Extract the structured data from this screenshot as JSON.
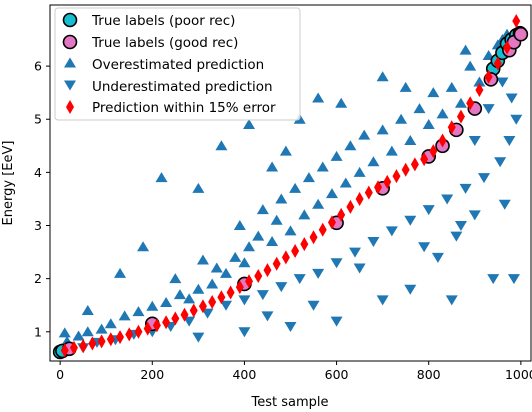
{
  "chart_data": {
    "type": "scatter",
    "xlabel": "Test sample",
    "ylabel": "Energy [EeV]",
    "xlim": [
      -22,
      1022
    ],
    "ylim": [
      0.45,
      7.15
    ],
    "x_ticks": [
      0,
      200,
      400,
      600,
      800,
      1000
    ],
    "y_ticks": [
      1,
      2,
      3,
      4,
      5,
      6
    ],
    "grid": false,
    "legend_position": "upper-left",
    "series": [
      {
        "name": "True labels (poor rec)",
        "marker": "circle",
        "color": "#17becf",
        "points": [
          [
            0,
            0.62
          ],
          [
            5,
            0.64
          ],
          [
            940,
            5.95
          ],
          [
            950,
            6.1
          ],
          [
            960,
            6.25
          ],
          [
            970,
            6.42
          ],
          [
            980,
            6.5
          ],
          [
            990,
            6.58
          ],
          [
            998,
            6.62
          ]
        ]
      },
      {
        "name": "True labels (good rec)",
        "marker": "circle",
        "color": "#e377c2",
        "points": [
          [
            20,
            0.68
          ],
          [
            200,
            1.15
          ],
          [
            400,
            1.9
          ],
          [
            600,
            3.05
          ],
          [
            700,
            3.7
          ],
          [
            800,
            4.3
          ],
          [
            830,
            4.5
          ],
          [
            860,
            4.8
          ],
          [
            900,
            5.2
          ],
          [
            935,
            5.75
          ],
          [
            975,
            6.3
          ],
          [
            985,
            6.45
          ],
          [
            1000,
            6.6
          ]
        ]
      },
      {
        "name": "Overestimated prediction",
        "marker": "triangle-up",
        "color": "#1f77b4",
        "points": [
          [
            10,
            0.98
          ],
          [
            15,
            0.82
          ],
          [
            40,
            0.92
          ],
          [
            60,
            1.0
          ],
          [
            90,
            1.05
          ],
          [
            110,
            1.15
          ],
          [
            140,
            1.3
          ],
          [
            170,
            1.38
          ],
          [
            200,
            1.48
          ],
          [
            230,
            1.55
          ],
          [
            250,
            2.0
          ],
          [
            260,
            1.7
          ],
          [
            280,
            1.62
          ],
          [
            300,
            1.8
          ],
          [
            310,
            2.35
          ],
          [
            330,
            1.9
          ],
          [
            340,
            2.2
          ],
          [
            360,
            2.1
          ],
          [
            380,
            2.4
          ],
          [
            390,
            3.0
          ],
          [
            400,
            2.3
          ],
          [
            410,
            2.6
          ],
          [
            430,
            2.8
          ],
          [
            440,
            3.3
          ],
          [
            460,
            2.7
          ],
          [
            470,
            3.1
          ],
          [
            480,
            3.5
          ],
          [
            500,
            2.9
          ],
          [
            510,
            3.7
          ],
          [
            530,
            3.2
          ],
          [
            540,
            3.9
          ],
          [
            560,
            3.4
          ],
          [
            570,
            4.1
          ],
          [
            590,
            3.6
          ],
          [
            600,
            4.3
          ],
          [
            620,
            3.8
          ],
          [
            630,
            4.5
          ],
          [
            650,
            4.0
          ],
          [
            660,
            4.7
          ],
          [
            680,
            4.2
          ],
          [
            700,
            4.8
          ],
          [
            720,
            4.4
          ],
          [
            740,
            5.0
          ],
          [
            760,
            4.6
          ],
          [
            780,
            5.2
          ],
          [
            800,
            4.9
          ],
          [
            810,
            5.5
          ],
          [
            830,
            5.1
          ],
          [
            850,
            5.6
          ],
          [
            870,
            5.3
          ],
          [
            890,
            6.0
          ],
          [
            910,
            5.7
          ],
          [
            930,
            6.2
          ],
          [
            950,
            6.4
          ],
          [
            960,
            6.5
          ],
          [
            970,
            6.6
          ],
          [
            350,
            4.5
          ],
          [
            410,
            4.9
          ],
          [
            490,
            4.4
          ],
          [
            560,
            5.4
          ],
          [
            610,
            5.3
          ],
          [
            300,
            3.7
          ],
          [
            220,
            3.9
          ],
          [
            180,
            2.6
          ],
          [
            130,
            2.1
          ],
          [
            60,
            1.4
          ],
          [
            880,
            6.3
          ],
          [
            460,
            4.1
          ],
          [
            700,
            5.8
          ],
          [
            750,
            5.6
          ],
          [
            520,
            5.0
          ]
        ]
      },
      {
        "name": "Underestimated prediction",
        "marker": "triangle-down",
        "color": "#1f77b4",
        "points": [
          [
            50,
            0.7
          ],
          [
            80,
            0.8
          ],
          [
            120,
            0.85
          ],
          [
            160,
            0.95
          ],
          [
            200,
            1.0
          ],
          [
            240,
            1.1
          ],
          [
            280,
            1.2
          ],
          [
            320,
            1.35
          ],
          [
            360,
            1.5
          ],
          [
            400,
            1.6
          ],
          [
            440,
            1.7
          ],
          [
            480,
            1.85
          ],
          [
            520,
            2.0
          ],
          [
            560,
            2.1
          ],
          [
            600,
            2.3
          ],
          [
            640,
            2.5
          ],
          [
            680,
            2.7
          ],
          [
            720,
            2.9
          ],
          [
            760,
            3.1
          ],
          [
            800,
            3.3
          ],
          [
            820,
            2.4
          ],
          [
            840,
            3.5
          ],
          [
            860,
            2.8
          ],
          [
            880,
            3.7
          ],
          [
            900,
            3.2
          ],
          [
            920,
            3.9
          ],
          [
            940,
            2.0
          ],
          [
            955,
            4.2
          ],
          [
            965,
            3.4
          ],
          [
            975,
            4.6
          ],
          [
            985,
            2.0
          ],
          [
            990,
            5.0
          ],
          [
            700,
            1.6
          ],
          [
            760,
            1.8
          ],
          [
            850,
            1.6
          ],
          [
            600,
            1.2
          ],
          [
            500,
            1.1
          ],
          [
            400,
            1.0
          ],
          [
            300,
            0.9
          ],
          [
            900,
            4.6
          ],
          [
            930,
            5.2
          ],
          [
            960,
            5.7
          ],
          [
            980,
            5.4
          ],
          [
            650,
            2.2
          ],
          [
            550,
            1.5
          ],
          [
            450,
            1.3
          ],
          [
            790,
            2.6
          ],
          [
            870,
            3.0
          ]
        ]
      },
      {
        "name": "Prediction within 15% error",
        "marker": "diamond",
        "color": "#ff0000",
        "points": [
          [
            10,
            0.65
          ],
          [
            30,
            0.7
          ],
          [
            50,
            0.73
          ],
          [
            70,
            0.78
          ],
          [
            90,
            0.82
          ],
          [
            110,
            0.86
          ],
          [
            130,
            0.9
          ],
          [
            150,
            0.95
          ],
          [
            170,
            1.0
          ],
          [
            190,
            1.06
          ],
          [
            210,
            1.12
          ],
          [
            230,
            1.18
          ],
          [
            250,
            1.25
          ],
          [
            270,
            1.32
          ],
          [
            290,
            1.4
          ],
          [
            310,
            1.48
          ],
          [
            330,
            1.56
          ],
          [
            350,
            1.65
          ],
          [
            370,
            1.74
          ],
          [
            390,
            1.84
          ],
          [
            410,
            1.95
          ],
          [
            430,
            2.05
          ],
          [
            450,
            2.16
          ],
          [
            470,
            2.28
          ],
          [
            490,
            2.4
          ],
          [
            510,
            2.52
          ],
          [
            530,
            2.65
          ],
          [
            550,
            2.78
          ],
          [
            570,
            2.92
          ],
          [
            590,
            3.06
          ],
          [
            610,
            3.2
          ],
          [
            630,
            3.35
          ],
          [
            650,
            3.5
          ],
          [
            670,
            3.62
          ],
          [
            690,
            3.72
          ],
          [
            710,
            3.82
          ],
          [
            730,
            3.93
          ],
          [
            750,
            4.05
          ],
          [
            770,
            4.15
          ],
          [
            790,
            4.25
          ],
          [
            810,
            4.4
          ],
          [
            830,
            4.6
          ],
          [
            850,
            4.85
          ],
          [
            870,
            5.05
          ],
          [
            890,
            5.3
          ],
          [
            910,
            5.55
          ],
          [
            930,
            5.8
          ],
          [
            950,
            6.05
          ],
          [
            970,
            6.35
          ],
          [
            990,
            6.85
          ]
        ]
      }
    ]
  }
}
